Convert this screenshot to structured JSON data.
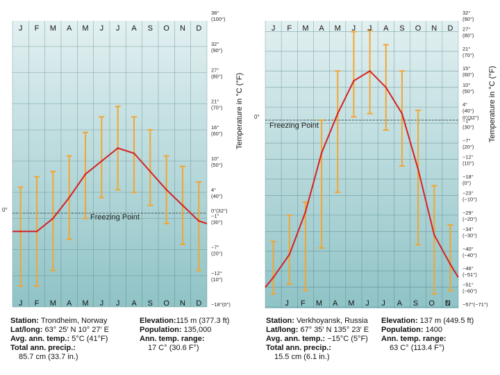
{
  "chart_data": [
    {
      "type": "line",
      "categories": [
        "J",
        "F",
        "M",
        "A",
        "M",
        "J",
        "J",
        "A",
        "S",
        "O",
        "N",
        "D"
      ],
      "bottom_categories": [
        "J",
        "F",
        "M",
        "A",
        "M",
        "J",
        "J",
        "A",
        "S",
        "O",
        "N",
        "D"
      ],
      "ylabel": "Temperature in °C (°F)",
      "freezing_label": "Freezing Point",
      "zero_label": "0°",
      "ylim": [
        -18,
        38
      ],
      "ticks": [
        {
          "v": 38,
          "c": "38°",
          "f": "(100°)"
        },
        {
          "v": 32,
          "c": "32°",
          "f": "(90°)"
        },
        {
          "v": 27,
          "c": "27°",
          "f": "(80°)"
        },
        {
          "v": 21,
          "c": "21°",
          "f": "(70°)"
        },
        {
          "v": 16,
          "c": "16°",
          "f": "(60°)"
        },
        {
          "v": 10,
          "c": "10°",
          "f": "(50°)"
        },
        {
          "v": 4,
          "c": "4°",
          "f": "(40°)"
        },
        {
          "v": 0,
          "c": "0°(32°)",
          "f": ""
        },
        {
          "v": -1,
          "c": "−1°",
          "f": "(30°)"
        },
        {
          "v": -7,
          "c": "−7°",
          "f": "(20°)"
        },
        {
          "v": -12,
          "c": "−12°",
          "f": "(10°)"
        },
        {
          "v": -18,
          "c": "−18°(0°)",
          "f": ""
        }
      ],
      "series": [
        {
          "values": [
            -3.5,
            -3.5,
            -1,
            3,
            7.5,
            10,
            12.5,
            11.5,
            8,
            4.5,
            1.5,
            -1.5
          ]
        }
      ],
      "ranges": [
        [
          -14,
          5
        ],
        [
          -14,
          7
        ],
        [
          -11,
          8
        ],
        [
          -5,
          11
        ],
        [
          -1,
          15.5
        ],
        [
          3,
          18.5
        ],
        [
          4.5,
          20.5
        ],
        [
          4,
          18.5
        ],
        [
          1.5,
          16
        ],
        [
          -2,
          11
        ],
        [
          -6,
          9
        ],
        [
          -11,
          6
        ]
      ],
      "edge_values": [
        -3.5,
        -2
      ]
    },
    {
      "type": "line",
      "categories": [
        "J",
        "F",
        "M",
        "A",
        "M",
        "J",
        "J",
        "A",
        "S",
        "O",
        "N",
        "D"
      ],
      "bottom_categories": [
        "J",
        "F",
        "M",
        "A",
        "M",
        "J",
        "J",
        "A",
        "S",
        "O",
        "N",
        "D"
      ],
      "ylabel": "Temperature in °C (°F)",
      "freezing_label": "Freezing Point",
      "zero_label": "0°",
      "ylim": [
        -57,
        32
      ],
      "ticks": [
        {
          "v": 32,
          "c": "32°",
          "f": "(90°)"
        },
        {
          "v": 27,
          "c": "27°",
          "f": "(80°)"
        },
        {
          "v": 21,
          "c": "21°",
          "f": "(70°)"
        },
        {
          "v": 15,
          "c": "15°",
          "f": "(60°)"
        },
        {
          "v": 10,
          "c": "10°",
          "f": "(50°)"
        },
        {
          "v": 4,
          "c": "4°",
          "f": "(40°)"
        },
        {
          "v": 0,
          "c": "0°(32°)",
          "f": ""
        },
        {
          "v": -1,
          "c": "−1°",
          "f": "(30°)"
        },
        {
          "v": -7,
          "c": "−7°",
          "f": "(20°)"
        },
        {
          "v": -12,
          "c": "−12°",
          "f": "(10°)"
        },
        {
          "v": -18,
          "c": "−18°",
          "f": "(0°)"
        },
        {
          "v": -23,
          "c": "−23°",
          "f": "(−10°)"
        },
        {
          "v": -29,
          "c": "−29°",
          "f": "(−20°)"
        },
        {
          "v": -34,
          "c": "−34°",
          "f": "(−30°)"
        },
        {
          "v": -40,
          "c": "−40°",
          "f": "(−40°)"
        },
        {
          "v": -46,
          "c": "−46°",
          "f": "(−51°)"
        },
        {
          "v": -51,
          "c": "−51°",
          "f": "(−60°)"
        },
        {
          "v": -57,
          "c": "−57°(−71°)",
          "f": ""
        }
      ],
      "series": [
        {
          "values": [
            -48,
            -41,
            -28,
            -10,
            2,
            12,
            15,
            10,
            2,
            -15,
            -35,
            -44
          ]
        }
      ],
      "ranges": [
        [
          -53,
          -37
        ],
        [
          -50,
          -29
        ],
        [
          -52,
          -25
        ],
        [
          -39,
          0
        ],
        [
          -22,
          15
        ],
        [
          1,
          27
        ],
        [
          2,
          27.5
        ],
        [
          -3,
          23
        ],
        [
          -14,
          15
        ],
        [
          -38,
          3
        ],
        [
          -53,
          -20
        ],
        [
          -52,
          -32
        ]
      ],
      "edge_values": [
        -51,
        -48
      ]
    }
  ],
  "stations": [
    {
      "station_label": "Station:",
      "station": "Trondheim, Norway",
      "elevation_label": "Elevation:",
      "elevation": "115 m (377.3 ft)",
      "latlong_label": "Lat/long:",
      "latlong": "63° 25′ N 10° 27′ E",
      "population_label": "Population:",
      "population": "135,000",
      "avg_temp_label": "Avg. ann. temp.:",
      "avg_temp": "5°C (41°F)",
      "range_label": "Ann. temp. range:",
      "range": "17 C° (30.6 F°)",
      "precip_label": "Total ann. precip.:",
      "precip": "85.7 cm (33.7 in.)"
    },
    {
      "station_label": "Station:",
      "station": "Verkhoyansk, Russia",
      "elevation_label": "Elevation:",
      "elevation": "137 m (449.5 ft)",
      "latlong_label": "Lat/long:",
      "latlong": "67° 35′ N 135° 23′ E",
      "population_label": "Population:",
      "population": "1400",
      "avg_temp_label": "Avg. ann. temp.:",
      "avg_temp": "−15°C (5°F)",
      "range_label": "Ann. temp. range:",
      "range": "63 C° (113.4 F°)",
      "precip_label": "Total ann. precip.:",
      "precip": "15.5 cm (6.1 in.)"
    }
  ],
  "colors": {
    "bg_top": "#e2f0f1",
    "bg_bottom": "#8fc3c6",
    "grid": "#3a6a70",
    "line": "#d62020",
    "range_bars": "#f2a531"
  }
}
